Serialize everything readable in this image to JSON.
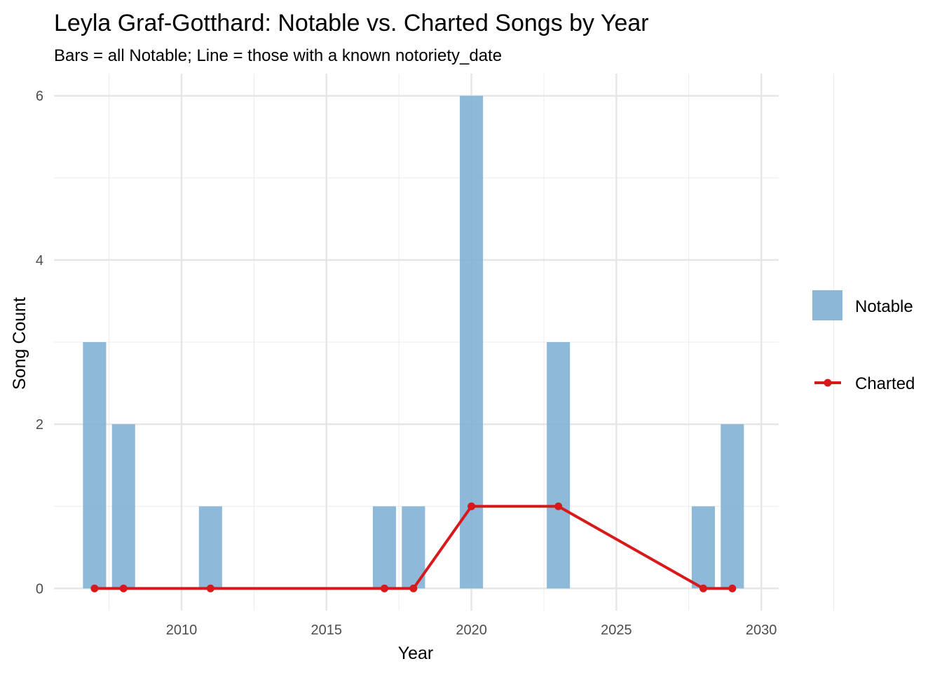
{
  "chart_data": {
    "type": "bar",
    "title": "Leyla Graf-Gotthard: Notable vs. Charted Songs by Year",
    "subtitle": "Bars = all Notable; Line = those with a known notoriety_date",
    "xlabel": "Year",
    "ylabel": "Song Count",
    "xlim": [
      2005.6,
      2030.6
    ],
    "ylim": [
      -0.27,
      6.27
    ],
    "x_ticks": [
      2010,
      2015,
      2020,
      2025,
      2030
    ],
    "y_ticks": [
      0,
      2,
      4,
      6
    ],
    "grid": true,
    "legend_position": "right",
    "series": [
      {
        "name": "Notable",
        "type": "bar",
        "color": "#7FAFD3",
        "x": [
          2007,
          2008,
          2011,
          2017,
          2018,
          2020,
          2023,
          2028,
          2029
        ],
        "values": [
          3,
          2,
          1,
          1,
          1,
          6,
          3,
          1,
          2
        ]
      },
      {
        "name": "Charted",
        "type": "line",
        "color": "#D7191C",
        "x": [
          2007,
          2008,
          2011,
          2017,
          2018,
          2020,
          2023,
          2028,
          2029
        ],
        "values": [
          0,
          0,
          0,
          0,
          0,
          1,
          1,
          0,
          0
        ]
      }
    ]
  }
}
